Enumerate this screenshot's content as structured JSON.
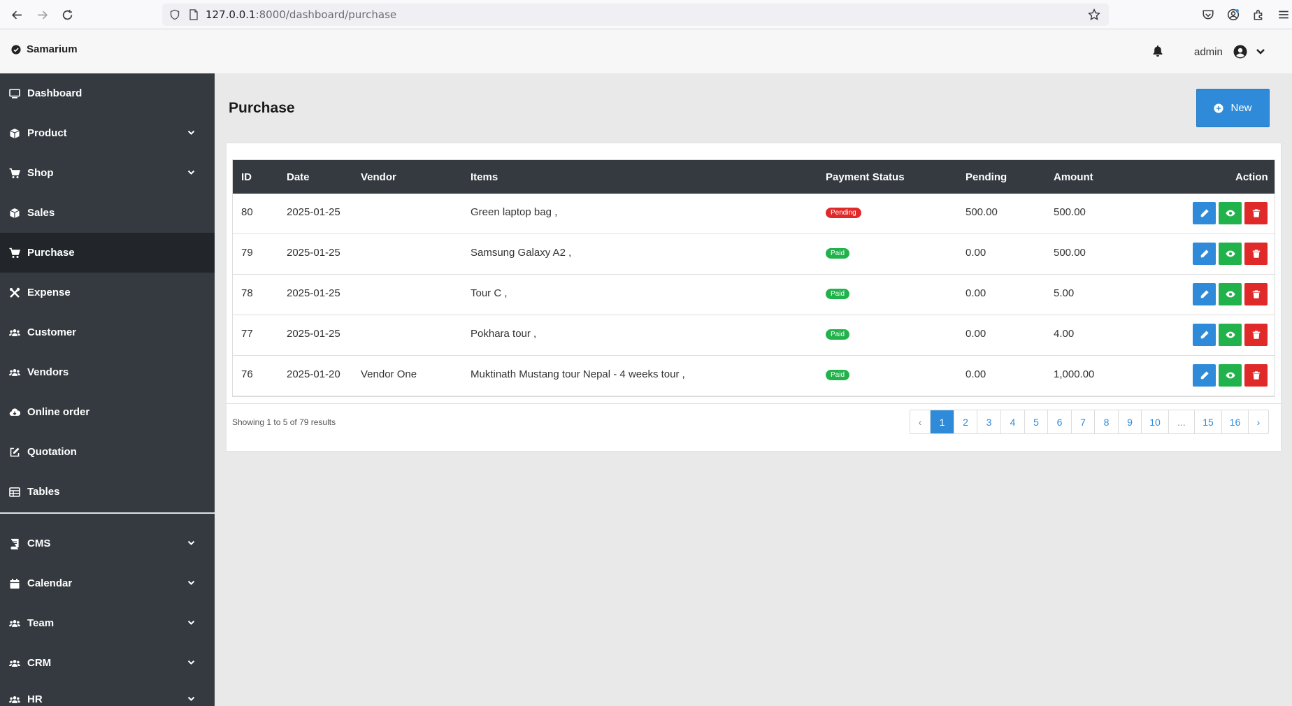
{
  "browser": {
    "url_host": "127.0.0.1",
    "url_path": ":8000/dashboard/purchase"
  },
  "header": {
    "brand": "Samarium",
    "user": "admin"
  },
  "sidebar": {
    "items": [
      {
        "label": "Dashboard",
        "icon": "monitor-icon",
        "expandable": false,
        "active": false
      },
      {
        "label": "Product",
        "icon": "cube-icon",
        "expandable": true,
        "active": false
      },
      {
        "label": "Shop",
        "icon": "cart-icon",
        "expandable": true,
        "active": false
      },
      {
        "label": "Sales",
        "icon": "cube-icon",
        "expandable": false,
        "active": false
      },
      {
        "label": "Purchase",
        "icon": "cart-icon",
        "expandable": false,
        "active": true
      },
      {
        "label": "Expense",
        "icon": "tools-icon",
        "expandable": false,
        "active": false
      },
      {
        "label": "Customer",
        "icon": "users-icon",
        "expandable": false,
        "active": false
      },
      {
        "label": "Vendors",
        "icon": "users-icon",
        "expandable": false,
        "active": false
      },
      {
        "label": "Online order",
        "icon": "cloud-download-icon",
        "expandable": false,
        "active": false
      },
      {
        "label": "Quotation",
        "icon": "edit-icon",
        "expandable": false,
        "active": false
      },
      {
        "label": "Tables",
        "icon": "table-icon",
        "expandable": false,
        "active": false
      },
      {
        "label": "CMS",
        "icon": "book-icon",
        "expandable": true,
        "active": false
      },
      {
        "label": "Calendar",
        "icon": "calendar-icon",
        "expandable": true,
        "active": false
      },
      {
        "label": "Team",
        "icon": "users-icon",
        "expandable": true,
        "active": false
      },
      {
        "label": "CRM",
        "icon": "users-icon",
        "expandable": true,
        "active": false
      },
      {
        "label": "HR",
        "icon": "users-icon",
        "expandable": true,
        "active": false
      }
    ]
  },
  "main": {
    "title": "Purchase",
    "new_label": "New",
    "table": {
      "columns": [
        "ID",
        "Date",
        "Vendor",
        "Items",
        "Payment Status",
        "Pending",
        "Amount",
        "Action"
      ],
      "rows": [
        {
          "id": "80",
          "date": "2025-01-25",
          "vendor": "",
          "items": "Green laptop bag ,",
          "status": "Pending",
          "pending": "500.00",
          "amount": "500.00"
        },
        {
          "id": "79",
          "date": "2025-01-25",
          "vendor": "",
          "items": "Samsung Galaxy A2 ,",
          "status": "Paid",
          "pending": "0.00",
          "amount": "500.00"
        },
        {
          "id": "78",
          "date": "2025-01-25",
          "vendor": "",
          "items": "Tour C ,",
          "status": "Paid",
          "pending": "0.00",
          "amount": "5.00"
        },
        {
          "id": "77",
          "date": "2025-01-25",
          "vendor": "",
          "items": "Pokhara tour ,",
          "status": "Paid",
          "pending": "0.00",
          "amount": "4.00"
        },
        {
          "id": "76",
          "date": "2025-01-20",
          "vendor": "Vendor One",
          "items": "Muktinath Mustang tour Nepal - 4 weeks tour ,",
          "status": "Paid",
          "pending": "0.00",
          "amount": "1,000.00"
        }
      ]
    },
    "showing": "Showing 1 to 5 of 79 results",
    "pagination": [
      "‹",
      "1",
      "2",
      "3",
      "4",
      "5",
      "6",
      "7",
      "8",
      "9",
      "10",
      "...",
      "15",
      "16",
      "›"
    ],
    "current_page": "1"
  },
  "colors": {
    "sidebar_bg": "#343a40",
    "primary": "#2f8bd9",
    "success": "#22b24c",
    "danger": "#e02a2a"
  }
}
